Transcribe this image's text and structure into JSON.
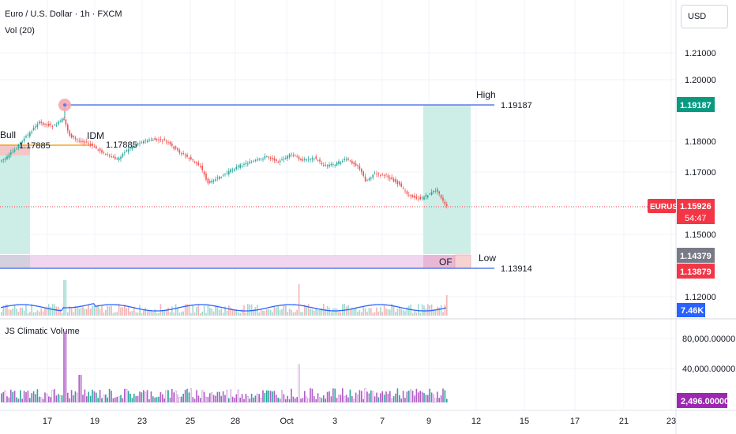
{
  "header": {
    "symbol_title": "Euro / U.S. Dollar · 1h · FXCM",
    "vol_indicator": "Vol (20)",
    "currency_button": "USD"
  },
  "price_axis": {
    "ticks": [
      "1.21000",
      "1.20000",
      "1.18000",
      "1.17000",
      "1.15000",
      "1.12000"
    ],
    "tags": {
      "high": "1.19187",
      "ticker": "EURUSD",
      "current_price": "1.15926",
      "countdown": "54:47",
      "price_a": "1.14379",
      "price_b": "1.13879",
      "volume": "7.46K"
    }
  },
  "annotations": {
    "high_label": "High",
    "high_value": "1.19187",
    "low_label": "Low",
    "low_value": "1.13914",
    "bull_label": "Bull",
    "bull_value": "1.17885",
    "idm_label": "IDM",
    "idm_value": "1.17885",
    "of_label": "OF"
  },
  "climatic_panel": {
    "title": "JS Climatic Volume",
    "ticks": [
      "80,000.00000",
      "40,000.00000"
    ],
    "current_tag": "2,496.00000"
  },
  "time_axis": {
    "labels": [
      "17",
      "19",
      "23",
      "25",
      "28",
      "Oct",
      "3",
      "7",
      "9",
      "12",
      "15",
      "17",
      "21",
      "23"
    ]
  },
  "colors": {
    "bull": "#26a69a",
    "bear": "#ef5350",
    "level_line": "#5b7be8",
    "green_zone": "#cdeee6",
    "pink_zone": "#f0d6ee",
    "red_tag": "#f23645",
    "green_tag": "#089981",
    "blue_tag": "#2962ff",
    "purple_tag": "#9c27b0",
    "gray_tag": "#787b86"
  }
}
